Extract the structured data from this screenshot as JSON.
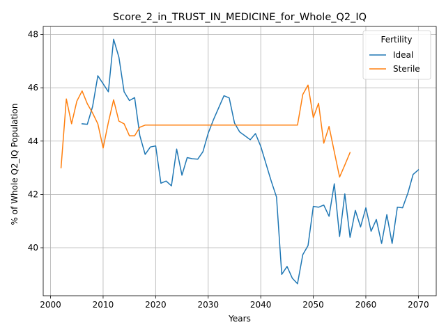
{
  "chart_data": {
    "type": "line",
    "title": "Score_2_in_TRUST_IN_MEDICINE_for_Whole_Q2_IQ",
    "xlabel": "Years",
    "ylabel": "% of Whole Q2_IQ Population",
    "xlim": [
      1998.6,
      2073.4
    ],
    "ylim": [
      38.2,
      48.3
    ],
    "xticks": [
      2000,
      2010,
      2020,
      2030,
      2040,
      2050,
      2060,
      2070
    ],
    "yticks": [
      40,
      42,
      44,
      46,
      48
    ],
    "grid": true,
    "legend": {
      "title": "Fertility",
      "placement": "top-right"
    },
    "series": [
      {
        "name": "Ideal",
        "color": "#1f77b4",
        "x": [
          2006,
          2007,
          2008,
          2009,
          2010,
          2011,
          2012,
          2013,
          2014,
          2015,
          2016,
          2017,
          2018,
          2019,
          2020,
          2021,
          2022,
          2023,
          2024,
          2025,
          2026,
          2027,
          2028,
          2029,
          2030,
          2031,
          2032,
          2033,
          2034,
          2035,
          2036,
          2037,
          2038,
          2039,
          2040,
          2041,
          2042,
          2043,
          2044,
          2045,
          2046,
          2047,
          2048,
          2049,
          2050,
          2051,
          2052,
          2053,
          2054,
          2055,
          2056,
          2057,
          2058,
          2059,
          2060,
          2061,
          2062,
          2063,
          2064,
          2065,
          2066,
          2067,
          2068,
          2069,
          2070
        ],
        "values": [
          44.65,
          44.63,
          45.3,
          46.45,
          46.15,
          45.85,
          47.82,
          47.15,
          45.85,
          45.52,
          45.63,
          44.2,
          43.5,
          43.78,
          43.82,
          42.42,
          42.5,
          42.32,
          43.7,
          42.72,
          43.38,
          43.34,
          43.32,
          43.6,
          44.3,
          44.8,
          45.25,
          45.7,
          45.62,
          44.68,
          44.34,
          44.2,
          44.05,
          44.28,
          43.8,
          43.15,
          42.5,
          41.9,
          39.0,
          39.3,
          38.86,
          38.65,
          39.74,
          40.08,
          41.55,
          41.52,
          41.6,
          41.18,
          42.4,
          40.42,
          42.02,
          40.39,
          41.4,
          40.78,
          41.5,
          40.62,
          41.06,
          40.16,
          41.24,
          40.16,
          41.52,
          41.5,
          42.05,
          42.75,
          42.92
        ]
      },
      {
        "name": "Sterile",
        "color": "#ff7f0e",
        "x": [
          2002,
          2003,
          2004,
          2005,
          2006,
          2007,
          2008,
          2009,
          2010,
          2011,
          2012,
          2013,
          2014,
          2015,
          2016,
          2017,
          2018,
          2019,
          2020,
          2021,
          2022,
          2023,
          2024,
          2025,
          2026,
          2027,
          2028,
          2029,
          2030,
          2031,
          2032,
          2033,
          2034,
          2035,
          2036,
          2037,
          2038,
          2039,
          2040,
          2041,
          2042,
          2043,
          2044,
          2045,
          2046,
          2047,
          2048,
          2049,
          2050,
          2051,
          2052,
          2053,
          2054,
          2055,
          2056,
          2057
        ],
        "values": [
          43.0,
          45.58,
          44.65,
          45.5,
          45.88,
          45.4,
          45.05,
          44.65,
          43.74,
          44.7,
          45.55,
          44.75,
          44.65,
          44.2,
          44.2,
          44.52,
          44.6,
          44.6,
          44.6,
          44.6,
          44.6,
          44.6,
          44.6,
          44.6,
          44.6,
          44.6,
          44.6,
          44.6,
          44.6,
          44.6,
          44.6,
          44.6,
          44.6,
          44.6,
          44.6,
          44.6,
          44.6,
          44.6,
          44.6,
          44.6,
          44.6,
          44.6,
          44.6,
          44.6,
          44.6,
          44.6,
          45.75,
          46.1,
          44.88,
          45.42,
          43.92,
          44.55,
          43.6,
          42.65,
          43.1,
          43.57
        ]
      }
    ]
  }
}
